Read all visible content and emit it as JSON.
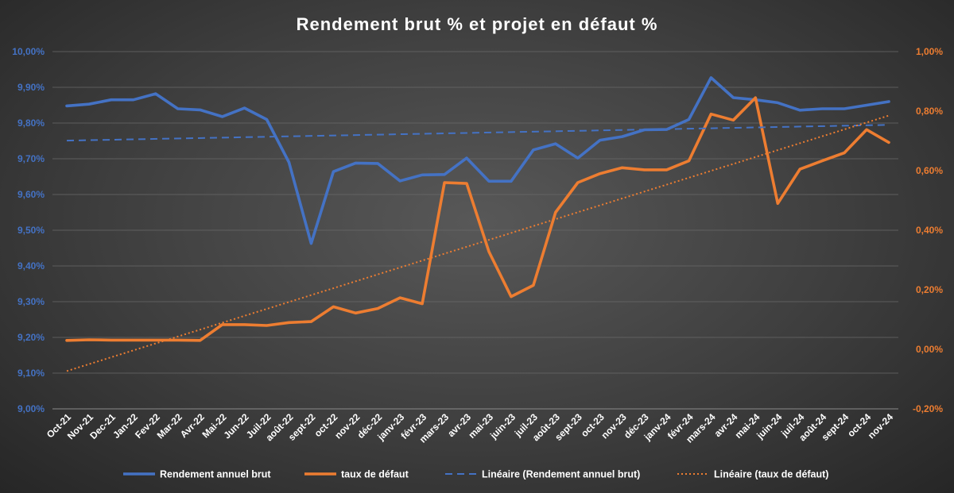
{
  "chart_data": {
    "type": "line",
    "title": "Rendement brut % et projet en défaut %",
    "categories": [
      "Oct-21",
      "Nov-21",
      "Dec-21",
      "Jan-22",
      "Fev-22",
      "Mar-22",
      "Avr-22",
      "Mai-22",
      "Jun-22",
      "Juil-22",
      "août-22",
      "sept-22",
      "oct-22",
      "nov-22",
      "déc-22",
      "janv-23",
      "févr-23",
      "mars-23",
      "avr-23",
      "mai-23",
      "juin-23",
      "juil-23",
      "août-23",
      "sept-23",
      "oct-23",
      "nov-23",
      "déc-23",
      "janv-24",
      "févr-24",
      "mars-24",
      "avr-24",
      "mai-24",
      "juin-24",
      "juil-24",
      "août-24",
      "sept-24",
      "oct-24",
      "nov-24"
    ],
    "y_left": {
      "ylim": [
        9.0,
        10.0
      ],
      "ticks": [
        "9,00%",
        "9,10%",
        "9,20%",
        "9,30%",
        "9,40%",
        "9,50%",
        "9,60%",
        "9,70%",
        "9,80%",
        "9,90%",
        "10,00%"
      ]
    },
    "y_right": {
      "ylim": [
        -0.2,
        1.0
      ],
      "ticks": [
        "-0,20%",
        "0,00%",
        "0,20%",
        "0,40%",
        "0,60%",
        "0,80%",
        "1,00%"
      ]
    },
    "series": [
      {
        "name": "Rendement annuel brut",
        "axis": "left",
        "color": "#4472C4",
        "style": "solid",
        "values": [
          9.848,
          9.853,
          9.865,
          9.865,
          9.882,
          9.84,
          9.837,
          9.818,
          9.842,
          9.81,
          9.69,
          9.463,
          9.664,
          9.688,
          9.687,
          9.638,
          9.655,
          9.656,
          9.702,
          9.637,
          9.637,
          9.725,
          9.742,
          9.702,
          9.752,
          9.762,
          9.781,
          9.782,
          9.81,
          9.927,
          9.871,
          9.865,
          9.857,
          9.836,
          9.84,
          9.84,
          9.85,
          9.86
        ]
      },
      {
        "name": "taux de défaut",
        "axis": "right",
        "color": "#ED7D31",
        "style": "solid",
        "values": [
          0.03,
          0.032,
          0.031,
          0.031,
          0.031,
          0.031,
          0.03,
          0.083,
          0.083,
          0.08,
          0.09,
          0.093,
          0.143,
          0.122,
          0.137,
          0.173,
          0.153,
          0.56,
          0.557,
          0.328,
          0.177,
          0.215,
          0.46,
          0.56,
          0.59,
          0.61,
          0.603,
          0.603,
          0.633,
          0.79,
          0.77,
          0.845,
          0.49,
          0.605,
          0.633,
          0.66,
          0.738,
          0.695
        ]
      },
      {
        "name": "Linéaire (Rendement annuel brut)",
        "axis": "left",
        "color": "#4472C4",
        "style": "dashed",
        "start": 9.751,
        "end": 9.795
      },
      {
        "name": "Linéaire (taux de défaut)",
        "axis": "right",
        "color": "#ED7D31",
        "style": "dotted",
        "start": -0.073,
        "end": 0.785
      }
    ],
    "grid": true,
    "legend": "bottom"
  }
}
